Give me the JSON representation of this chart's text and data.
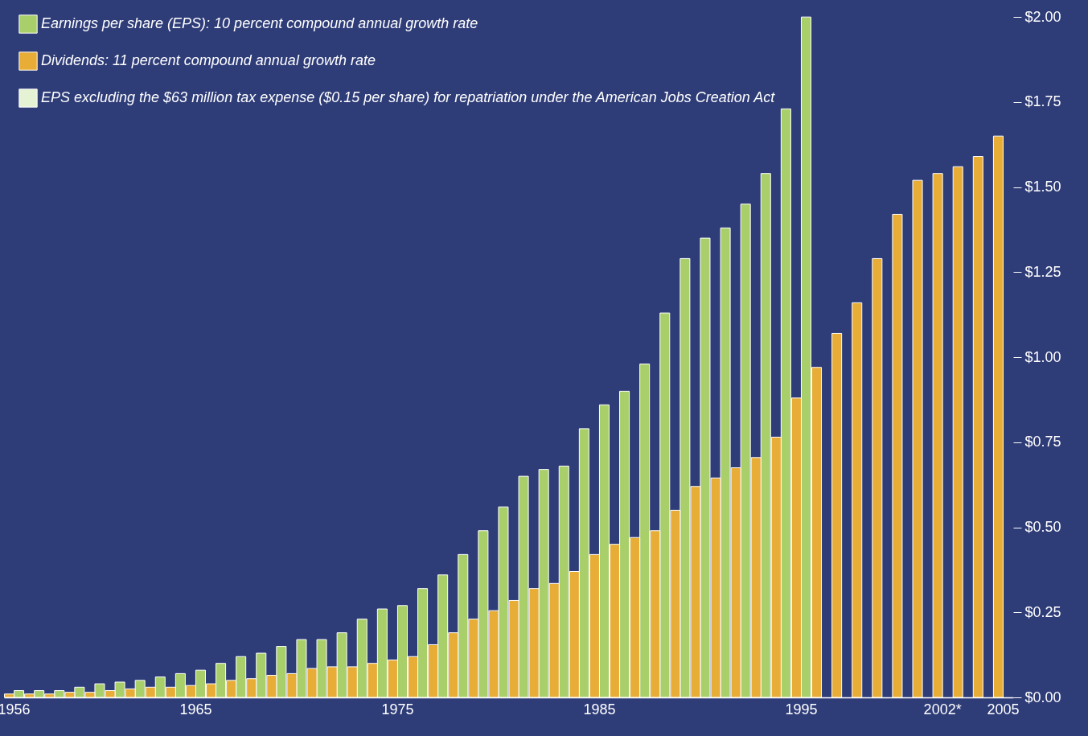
{
  "chart_data": {
    "type": "bar",
    "categories": [
      "1956",
      null,
      null,
      null,
      null,
      null,
      null,
      null,
      null,
      "1965",
      null,
      null,
      null,
      null,
      null,
      null,
      null,
      null,
      null,
      "1975",
      null,
      null,
      null,
      null,
      null,
      null,
      null,
      null,
      null,
      "1985",
      null,
      null,
      null,
      null,
      null,
      null,
      null,
      null,
      null,
      "1995",
      null,
      null,
      null,
      null,
      null,
      null,
      "2002*",
      null,
      null,
      "2005"
    ],
    "series": [
      {
        "name": "Earnings per share (EPS): 10 percent compound annual growth rate",
        "color": "#a9cf6b",
        "values": [
          0.02,
          0.02,
          0.02,
          0.03,
          0.04,
          0.045,
          0.05,
          0.06,
          0.07,
          0.08,
          0.1,
          0.12,
          0.13,
          0.15,
          0.17,
          0.17,
          0.19,
          0.23,
          0.26,
          0.27,
          0.32,
          0.36,
          0.42,
          0.49,
          0.56,
          0.65,
          0.67,
          0.68,
          0.79,
          0.86,
          0.9,
          0.98,
          1.13,
          1.29,
          1.35,
          1.38,
          1.45,
          1.54,
          1.73,
          2.0,
          null,
          null,
          null,
          null,
          null,
          null,
          null,
          null,
          null,
          null
        ]
      },
      {
        "name": "Dividends: 11 percent compound annual growth rate",
        "color": "#e7ad36",
        "values": [
          0.01,
          0.01,
          0.01,
          0.015,
          0.015,
          0.02,
          0.025,
          0.03,
          0.03,
          0.035,
          0.04,
          0.05,
          0.055,
          0.065,
          0.07,
          0.085,
          0.09,
          0.09,
          0.1,
          0.11,
          0.12,
          0.155,
          0.19,
          0.23,
          0.255,
          0.285,
          0.32,
          0.335,
          0.37,
          0.42,
          0.45,
          0.47,
          0.49,
          0.55,
          0.62,
          0.645,
          0.675,
          0.705,
          0.765,
          0.88,
          0.97,
          1.07,
          1.16,
          1.29,
          1.42,
          1.52,
          1.54,
          1.56,
          1.59,
          1.65
        ]
      },
      {
        "name": "EPS excluding the $63 million tax expense ($0.15 per share) for repatriation under the American Jobs Creation Act",
        "color": "#e6f2d4",
        "values": [
          null,
          null,
          null,
          null,
          null,
          null,
          null,
          null,
          null,
          null,
          null,
          null,
          null,
          null,
          null,
          null,
          null,
          null,
          null,
          null,
          null,
          null,
          null,
          null,
          null,
          null,
          null,
          null,
          null,
          null,
          null,
          null,
          null,
          null,
          null,
          null,
          null,
          null,
          null,
          null,
          null,
          null,
          null,
          null,
          null,
          null,
          null,
          null,
          null,
          null
        ]
      }
    ],
    "ylim": [
      0,
      2.05
    ],
    "yticks": [
      {
        "value": 0,
        "label": "$0.00"
      },
      {
        "value": 0.25,
        "label": "$0.25"
      },
      {
        "value": 0.5,
        "label": "$0.50"
      },
      {
        "value": 0.75,
        "label": "$0.75"
      },
      {
        "value": 1,
        "label": "$1.00"
      },
      {
        "value": 1.25,
        "label": "$1.25"
      },
      {
        "value": 1.5,
        "label": "$1.50"
      },
      {
        "value": 1.75,
        "label": "$1.75"
      },
      {
        "value": 2,
        "label": "$2.00"
      }
    ],
    "grid": false,
    "legend": "top left"
  }
}
